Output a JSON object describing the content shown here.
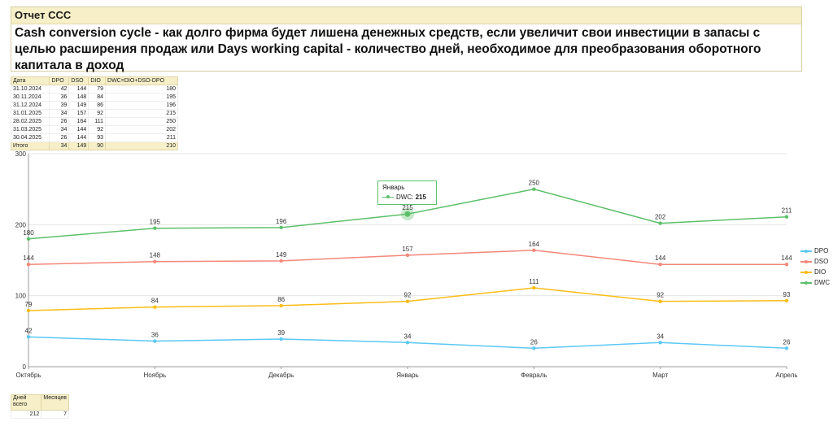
{
  "report": {
    "title": "Отчет CCC",
    "subtitle": "Cash conversion cycle - как долго фирма будет лишена денежных средств, если увеличит свои инвестиции в запасы с целью расширения продаж или Days working capital - количество дней, необходимое для преобразования оборотного капитала в доход"
  },
  "table": {
    "headers": [
      "Дата",
      "DPO",
      "DSO",
      "DIO",
      "DWC=DIO+DSO-DPO"
    ],
    "rows": [
      [
        "31.10.2024",
        "42",
        "144",
        "79",
        "180"
      ],
      [
        "30.11.2024",
        "36",
        "148",
        "84",
        "195"
      ],
      [
        "31.12.2024",
        "39",
        "149",
        "86",
        "196"
      ],
      [
        "31.01.2025",
        "34",
        "157",
        "92",
        "215"
      ],
      [
        "28.02.2025",
        "26",
        "164",
        "111",
        "250"
      ],
      [
        "31.03.2025",
        "34",
        "144",
        "92",
        "202"
      ],
      [
        "30.04.2025",
        "26",
        "144",
        "93",
        "211"
      ]
    ],
    "total": [
      "Итого",
      "34",
      "149",
      "90",
      "210"
    ]
  },
  "summary": {
    "headers": [
      "Дней всего",
      "Месяцев"
    ],
    "values": [
      "212",
      "7"
    ]
  },
  "tooltip": {
    "title": "Январь",
    "series_label": "DWC:",
    "value": "215"
  },
  "chart_data": {
    "type": "line",
    "categories": [
      "Октябрь",
      "Ноябрь",
      "Декабрь",
      "Январь",
      "Февраль",
      "Март",
      "Апрель"
    ],
    "ylim": [
      0,
      300
    ],
    "yticks": [
      "0",
      "100",
      "200",
      "300"
    ],
    "grid": true,
    "legend": "right",
    "series": [
      {
        "name": "DPO",
        "color": "#5bc8f5",
        "values": [
          42,
          36,
          39,
          34,
          26,
          34,
          26
        ]
      },
      {
        "name": "DSO",
        "color": "#f4877a",
        "values": [
          144,
          148,
          149,
          157,
          164,
          144,
          144
        ]
      },
      {
        "name": "DIO",
        "color": "#fbbd16",
        "values": [
          79,
          84,
          86,
          92,
          111,
          92,
          93
        ]
      },
      {
        "name": "DWC",
        "color": "#5cc06a",
        "values": [
          180,
          195,
          196,
          215,
          250,
          202,
          211
        ]
      }
    ],
    "highlight": {
      "series": "DWC",
      "category": "Январь"
    }
  }
}
